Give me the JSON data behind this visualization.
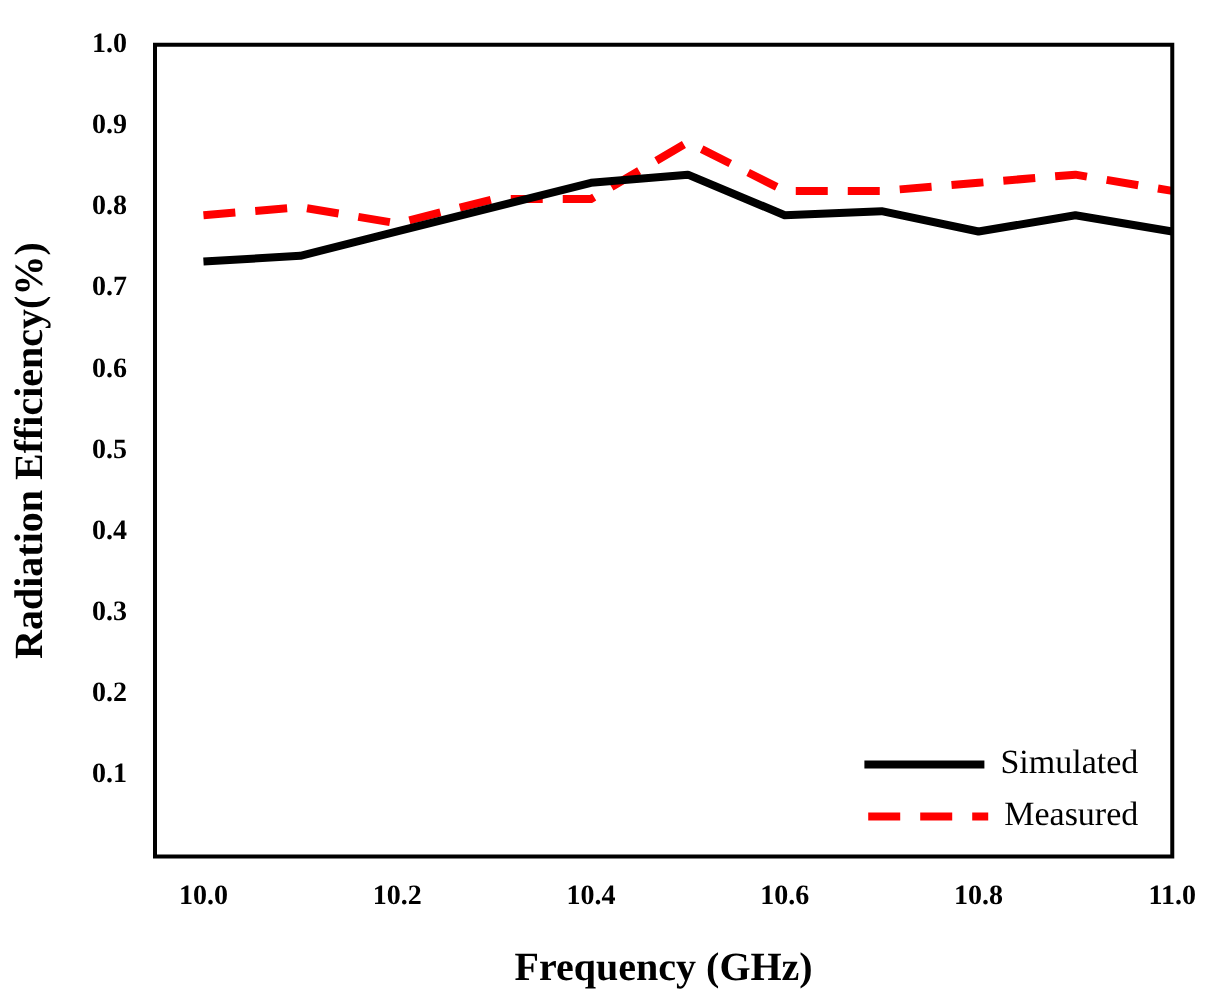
{
  "chart_data": {
    "type": "line",
    "xlabel": "Frequency (GHz)",
    "ylabel": "Radiation Efficiency(%)",
    "x": [
      10.0,
      10.1,
      10.2,
      10.3,
      10.4,
      10.5,
      10.6,
      10.7,
      10.8,
      10.9,
      11.0
    ],
    "series": [
      {
        "name": "Simulated",
        "color": "#000000",
        "line_style": "solid",
        "values": [
          0.733,
          0.74,
          0.77,
          0.8,
          0.83,
          0.84,
          0.79,
          0.795,
          0.77,
          0.79,
          0.77
        ]
      },
      {
        "name": "Measured",
        "color": "#ff0000",
        "line_style": "dashed",
        "values": [
          0.79,
          0.8,
          0.78,
          0.81,
          0.81,
          0.88,
          0.82,
          0.82,
          0.83,
          0.84,
          0.82
        ]
      }
    ],
    "xlim": [
      9.95,
      11.0
    ],
    "xticks": [
      {
        "value": 10.0,
        "label": "10.0"
      },
      10.2,
      10.4,
      10.6,
      10.8,
      {
        "value": 11.0,
        "label": "11.0"
      }
    ],
    "ylim": [
      0,
      1
    ],
    "yticks": [
      0.1,
      0.2,
      0.3,
      0.4,
      0.5,
      0.6,
      0.7,
      0.8,
      0.9,
      {
        "value": 1,
        "label": "1.0"
      }
    ],
    "grid": false,
    "legend": "bottom right",
    "marker": "none"
  }
}
